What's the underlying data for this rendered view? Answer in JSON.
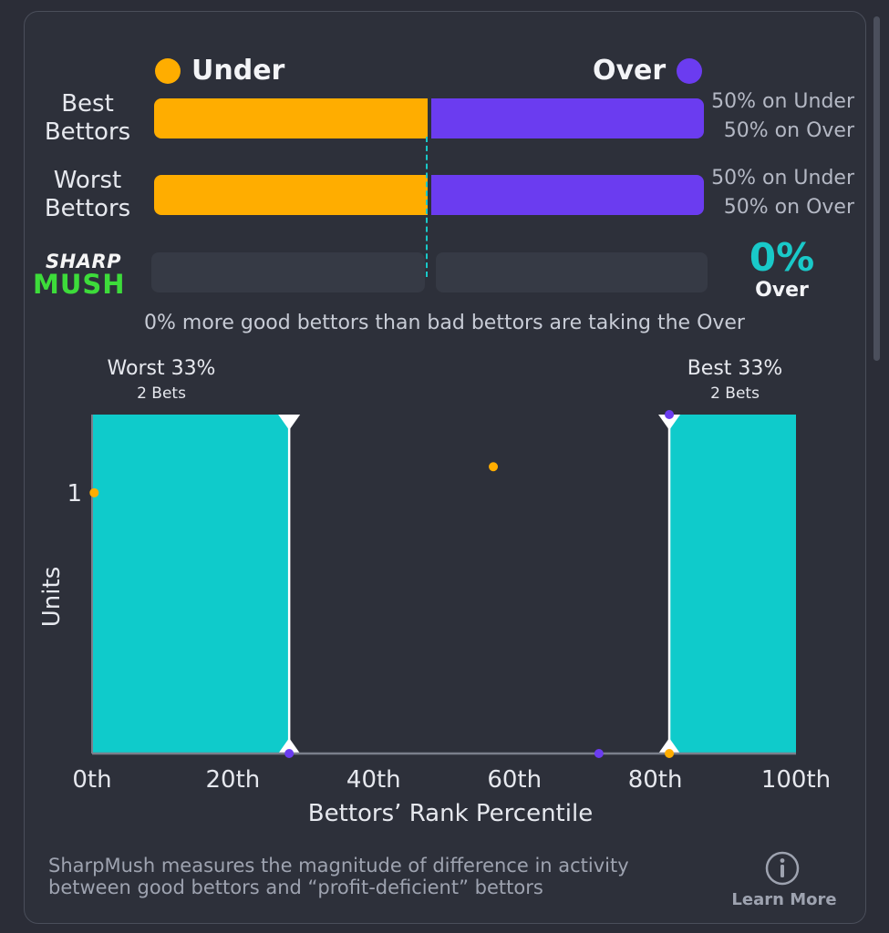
{
  "legend": {
    "under": "Under",
    "over": "Over"
  },
  "rows": [
    {
      "label_line1": "Best",
      "label_line2": "Bettors",
      "under_pct": 50,
      "over_pct": 50,
      "under_text": "50% on Under",
      "over_text": "50% on Over"
    },
    {
      "label_line1": "Worst",
      "label_line2": "Bettors",
      "under_pct": 50,
      "over_pct": 50,
      "under_text": "50% on Under",
      "over_text": "50% on Over"
    }
  ],
  "sharpmush": {
    "logo_top": "SHARP",
    "logo_bottom": "MUSH",
    "value": "0%",
    "label": "Over"
  },
  "summary": "0% more good bettors than bad bettors are taking the Over",
  "groups": {
    "worst": {
      "title": "Worst 33%",
      "sub": "2 Bets"
    },
    "best": {
      "title": "Best 33%",
      "sub": "2 Bets"
    }
  },
  "chart_data": {
    "type": "scatter",
    "xlabel": "Bettors’ Rank Percentile",
    "ylabel": "Units",
    "x_ticks": [
      "0th",
      "20th",
      "40th",
      "60th",
      "80th",
      "100th"
    ],
    "x_tick_values": [
      0,
      20,
      40,
      60,
      80,
      100
    ],
    "y_ticks": [
      {
        "label": "1",
        "value": 1
      }
    ],
    "xlim": [
      0,
      100
    ],
    "ylim": [
      0,
      1.3
    ],
    "regions": [
      {
        "name": "Worst 33%",
        "x_start": 0,
        "x_end": 28,
        "color": "#0fcbcb"
      },
      {
        "name": "Best 33%",
        "x_start": 82,
        "x_end": 100,
        "color": "#0fcbcb"
      }
    ],
    "series": [
      {
        "name": "Under",
        "color": "#ffad00",
        "points": [
          {
            "x": 0.3,
            "y": 1.0
          },
          {
            "x": 57,
            "y": 1.1
          },
          {
            "x": 82,
            "y": 0
          }
        ]
      },
      {
        "name": "Over",
        "color": "#6b3cf0",
        "points": [
          {
            "x": 28,
            "y": 0
          },
          {
            "x": 72,
            "y": 0
          },
          {
            "x": 82,
            "y": 1.3
          }
        ]
      }
    ]
  },
  "footer": {
    "line1": "SharpMush measures the magnitude of difference in activity",
    "line2": "between good bettors and “profit-deficient” bettors",
    "learn_more": "Learn More"
  }
}
